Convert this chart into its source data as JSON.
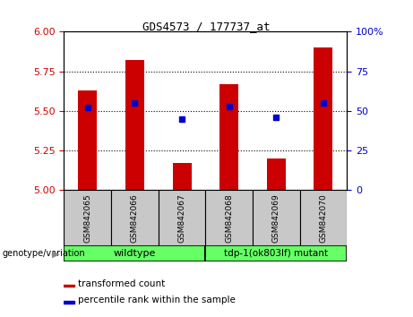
{
  "title": "GDS4573 / 177737_at",
  "samples": [
    "GSM842065",
    "GSM842066",
    "GSM842067",
    "GSM842068",
    "GSM842069",
    "GSM842070"
  ],
  "transformed_counts": [
    5.63,
    5.82,
    5.17,
    5.67,
    5.2,
    5.9
  ],
  "percentile_ranks": [
    52,
    55,
    45,
    53,
    46,
    55
  ],
  "ylim_left": [
    5.0,
    6.0
  ],
  "ylim_right": [
    0,
    100
  ],
  "yticks_left": [
    5.0,
    5.25,
    5.5,
    5.75,
    6.0
  ],
  "yticks_right": [
    0,
    25,
    50,
    75,
    100
  ],
  "bar_color": "#CC0000",
  "dot_color": "#0000CC",
  "bar_width": 0.4,
  "background_color": "#ffffff",
  "tick_label_color_left": "#CC0000",
  "tick_label_color_right": "#0000CC",
  "legend_items": [
    {
      "label": "transformed count",
      "color": "#CC0000"
    },
    {
      "label": "percentile rank within the sample",
      "color": "#0000CC"
    }
  ],
  "genotype_label": "genotype/variation",
  "sample_box_color": "#C8C8C8",
  "green_color": "#66FF66",
  "wildtype_label": "wildtype",
  "mutant_label": "tdp-1(ok803lf) mutant"
}
